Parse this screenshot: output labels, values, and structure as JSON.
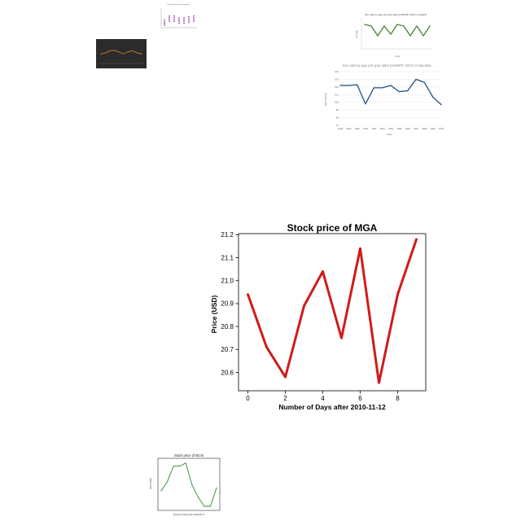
{
  "chart_data": [
    {
      "id": "top-purple",
      "type": "scatter",
      "title": "Sex ratio by age (10 year olds)",
      "xlabel": "",
      "ylabel": "",
      "x": [
        0,
        1,
        2,
        3,
        4,
        5,
        6
      ],
      "series": [
        {
          "name": "",
          "values": [
            0.4,
            0.6,
            0.6,
            0.5,
            0.5,
            0.55,
            0.6
          ]
        }
      ],
      "ylim": [
        0,
        1
      ],
      "color": "#a04aa8"
    },
    {
      "id": "dark-orange",
      "type": "line",
      "title": "",
      "xlabel": "",
      "ylabel": "",
      "x": [
        0,
        1,
        2,
        3,
        4,
        5,
        6,
        7,
        8,
        9
      ],
      "series": [
        {
          "name": "",
          "values": [
            0.45,
            0.5,
            0.6,
            0.62,
            0.55,
            0.45,
            0.55,
            0.6,
            0.5,
            0.45
          ]
        }
      ],
      "ylim": [
        0,
        1
      ],
      "color": "#e08a2e"
    },
    {
      "id": "green-top-right",
      "type": "line",
      "title": "Sex ratio by age (10 year olds) (UNWPP, 2017) in Ireland",
      "xlabel": "Years",
      "ylabel": "Sex ratio",
      "x": [
        1950,
        1951,
        1952,
        1953,
        1954,
        1955,
        1956,
        1957,
        1958,
        1959,
        1960
      ],
      "series": [
        {
          "name": "",
          "values": [
            104.9,
            104.8,
            104.2,
            104.8,
            104.3,
            104.9,
            104.8,
            104.2,
            104.8,
            104.2,
            104.8
          ]
        }
      ],
      "ylim": [
        103.5,
        105.2
      ],
      "color": "#4a8a3a"
    },
    {
      "id": "namibia",
      "type": "line",
      "title": "Sex ratio by age (10 year olds) (UNWPP, 2017) in Namibia",
      "xlabel": "Years",
      "ylabel": "SEX RATIO",
      "x": [
        1958,
        1959,
        1960,
        1961,
        1962,
        1963,
        1964,
        1965,
        1966,
        1967,
        1968,
        1969,
        1970
      ],
      "xticks": [
        "1958",
        "1959",
        "1960",
        "1961",
        "1962",
        "1963",
        "1964",
        "1965",
        "1966",
        "1967",
        "1968",
        "1969",
        "1970"
      ],
      "series": [
        {
          "name": "",
          "values": [
            102.2,
            102.2,
            102.3,
            99.8,
            101.9,
            101.9,
            102.2,
            101.4,
            101.5,
            103.0,
            102.6,
            100.7,
            99.7
          ]
        }
      ],
      "yticks": [
        "104",
        "103",
        "102",
        "101",
        "100",
        "99",
        "98",
        "97"
      ],
      "ylim": [
        97,
        104
      ],
      "color": "#2d5a8c"
    },
    {
      "id": "mga",
      "type": "line",
      "title": "Stock price of MGA",
      "xlabel": "Number of Days after 2010-11-12",
      "ylabel": "Price (USD)",
      "x": [
        0,
        1,
        2,
        3,
        4,
        5,
        6,
        7,
        8,
        9
      ],
      "series": [
        {
          "name": "",
          "values": [
            20.94,
            20.71,
            20.58,
            20.89,
            21.04,
            20.75,
            21.14,
            20.555,
            20.94,
            21.18
          ]
        }
      ],
      "xticks": [
        "0",
        "2",
        "4",
        "6",
        "8"
      ],
      "yticks": [
        "21.2",
        "21.1",
        "21.0",
        "20.9",
        "20.8",
        "20.7",
        "20.6"
      ],
      "xlim": [
        -0.5,
        9.5
      ],
      "ylim": [
        20.52,
        21.205
      ],
      "grid": false,
      "color": "#d11a1a"
    },
    {
      "id": "bcsi",
      "type": "line",
      "title": "Stock price of BCSI",
      "xlabel": "Number of Days after 2010-06-17",
      "ylabel": "Price (USD)",
      "x": [
        0,
        1,
        2,
        3,
        4,
        5,
        6,
        7,
        8,
        9
      ],
      "series": [
        {
          "name": "",
          "values": [
            20.3,
            20.6,
            21.1,
            21.1,
            21.2,
            20.5,
            20.1,
            19.8,
            19.8,
            20.4
          ]
        }
      ],
      "ylim": [
        19.8,
        21.3
      ],
      "color": "#2a8a2a"
    }
  ]
}
